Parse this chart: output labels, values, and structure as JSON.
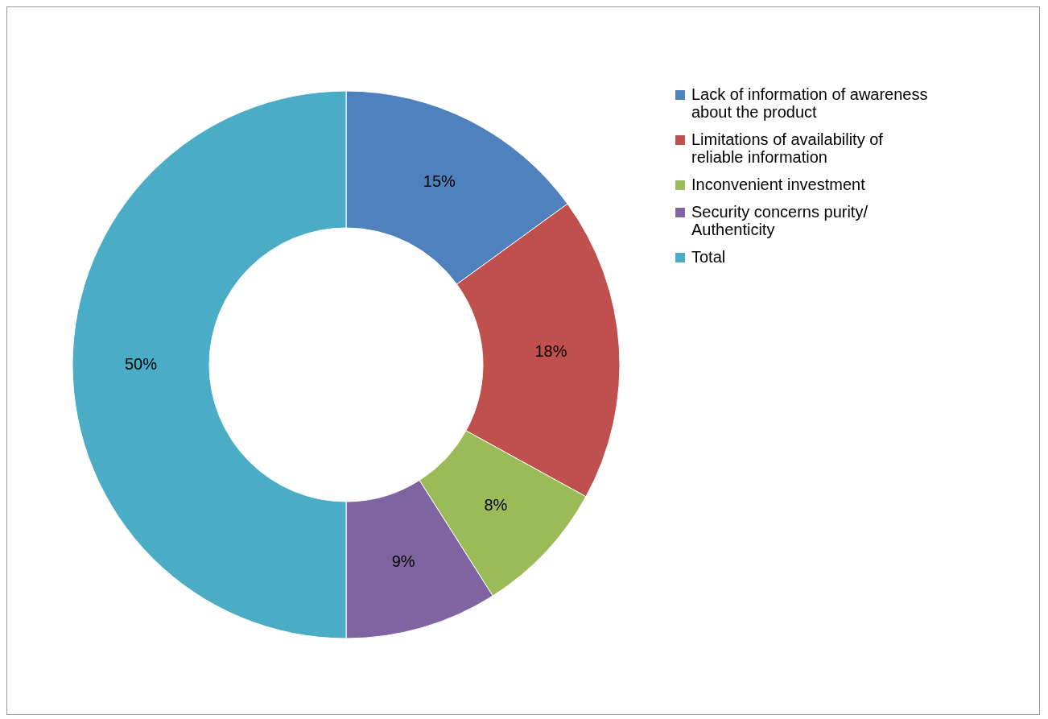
{
  "chart_data": {
    "type": "donut",
    "categories": [
      "Lack of information of awareness about the product",
      "Limitations of availability of reliable information",
      "Inconvenient investment",
      "Security concerns purity/ Authenticity",
      "Total"
    ],
    "values": [
      15,
      18,
      8,
      9,
      50
    ],
    "colors": [
      "#4f81bd",
      "#c0504d",
      "#9bbb59",
      "#8064a2",
      "#4bacc6"
    ],
    "value_labels": [
      "15%",
      "18%",
      "8%",
      "9%",
      "50%"
    ],
    "legend": "right"
  }
}
